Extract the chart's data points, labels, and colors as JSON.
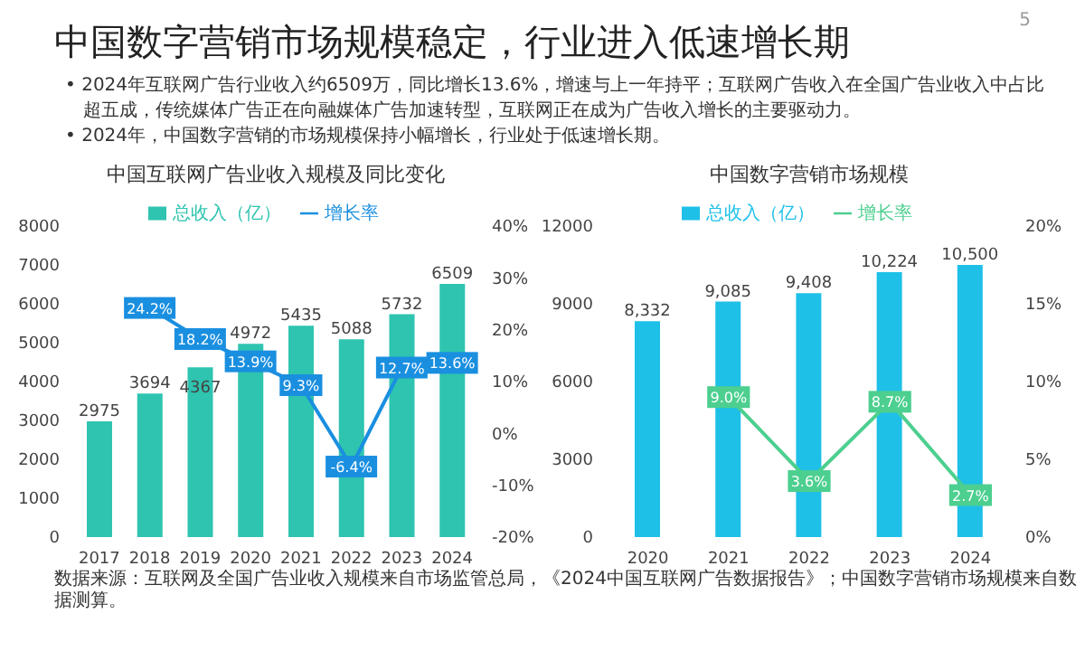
{
  "chart_data": [
    {
      "type": "other",
      "title": "中国数字营销市场规模稳定，行业进入低速增长期",
      "annotations": [
        "5",
        "• 2024年互联网广告行业收入约6509万，同比增长13.6%，增速与上一年持平；互联网广告收入在全国广告业收入中占比超五成，传统媒体广告正在向融媒体广告加速转型，互联网正在成为广告收入增长的主要驱动力。",
        "• 2024年，中国数字营销的市场规模保持小幅增长，行业处于低速增长期。",
        "数据来源：互联网及全国广告业收入规模来自市场监管总局，《2024中国互联网广告数据报告》；中国数字营销市场规模来自数据测算。"
      ]
    },
    {
      "type": "bar",
      "title": "中国互联网广告业收入规模及同比变化",
      "categories": [
        "2017",
        "2018",
        "2019",
        "2020",
        "2021",
        "2022",
        "2023",
        "2024"
      ],
      "series": [
        {
          "name": "总收入（亿）",
          "type": "bar",
          "color": "#2ec4b0",
          "values": [
            2975,
            3694,
            4367,
            4972,
            5435,
            5088,
            5732,
            6509
          ],
          "value_labels": [
            "2975",
            "3694",
            "4367",
            "4972",
            "5435",
            "5088",
            "5732",
            "6509"
          ]
        },
        {
          "name": "增长率",
          "type": "line",
          "axis": "y2",
          "color": "#1a8fe0",
          "values": [
            null,
            24.2,
            18.2,
            13.9,
            9.3,
            -6.4,
            12.7,
            13.6
          ],
          "value_labels": [
            null,
            "24.2%",
            "18.2%",
            "13.9%",
            "9.3%",
            "-6.4%",
            "12.7%",
            "13.6%"
          ]
        }
      ],
      "ylim": [
        0,
        8000
      ],
      "yticks": [
        0,
        1000,
        2000,
        3000,
        4000,
        5000,
        6000,
        7000,
        8000
      ],
      "y2lim": [
        -20,
        40
      ],
      "y2ticks": [
        {
          "value": -20,
          "label": "-20%"
        },
        {
          "value": -10,
          "label": "-10%"
        },
        {
          "value": 0,
          "label": "0%"
        },
        {
          "value": 10,
          "label": "10%"
        },
        {
          "value": 20,
          "label": "20%"
        },
        {
          "value": 30,
          "label": "30%"
        },
        {
          "value": 40,
          "label": "40%"
        }
      ],
      "legend": "top",
      "marker": "square"
    },
    {
      "type": "bar",
      "title": "中国数字营销市场规模",
      "categories": [
        "2020",
        "2021",
        "2022",
        "2023",
        "2024"
      ],
      "series": [
        {
          "name": "总收入（亿）",
          "type": "bar",
          "color": "#1ec0e8",
          "values": [
            8332,
            9085,
            9408,
            10224,
            10500
          ],
          "value_labels": [
            "8,332",
            "9,085",
            "9,408",
            "10,224",
            "10,500"
          ]
        },
        {
          "name": "增长率",
          "type": "line",
          "axis": "y2",
          "color": "#4ccf8f",
          "values": [
            null,
            9.0,
            3.6,
            8.7,
            2.7
          ],
          "value_labels": [
            null,
            "9.0%",
            "3.6%",
            "8.7%",
            "2.7%"
          ]
        }
      ],
      "ylim": [
        0,
        12000
      ],
      "yticks": [
        0,
        3000,
        6000,
        9000,
        12000
      ],
      "y2lim": [
        0,
        20
      ],
      "y2ticks": [
        {
          "value": 0,
          "label": "0%"
        },
        {
          "value": 5,
          "label": "5%"
        },
        {
          "value": 10,
          "label": "10%"
        },
        {
          "value": 15,
          "label": "15%"
        },
        {
          "value": 20,
          "label": "20%"
        }
      ],
      "legend": "top",
      "marker": "square"
    }
  ]
}
